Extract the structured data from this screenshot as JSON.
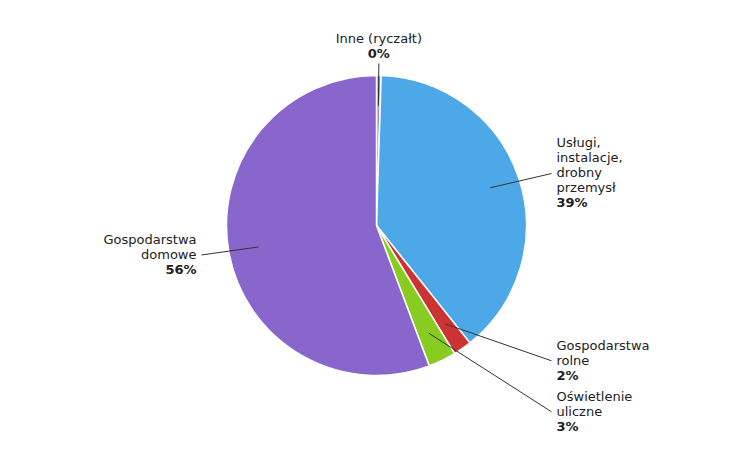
{
  "chart_data": {
    "type": "pie",
    "categories": [
      "Inne (ryczałt)",
      "Usługi,\ninstalacje,\ndrobny\nprzemysł",
      "Gospodarstwa\nrolne",
      "Oświetlenie\nuliczne",
      "Gospodarstwa\ndomowe"
    ],
    "values": [
      0.5,
      39,
      2,
      3,
      56
    ],
    "value_labels": [
      "0%",
      "39%",
      "2%",
      "3%",
      "56%"
    ],
    "colors": [
      "#9b8ed4",
      "#4da8e8",
      "#cc3333",
      "#88cc22",
      "#8866cc"
    ],
    "data_labels": true
  }
}
